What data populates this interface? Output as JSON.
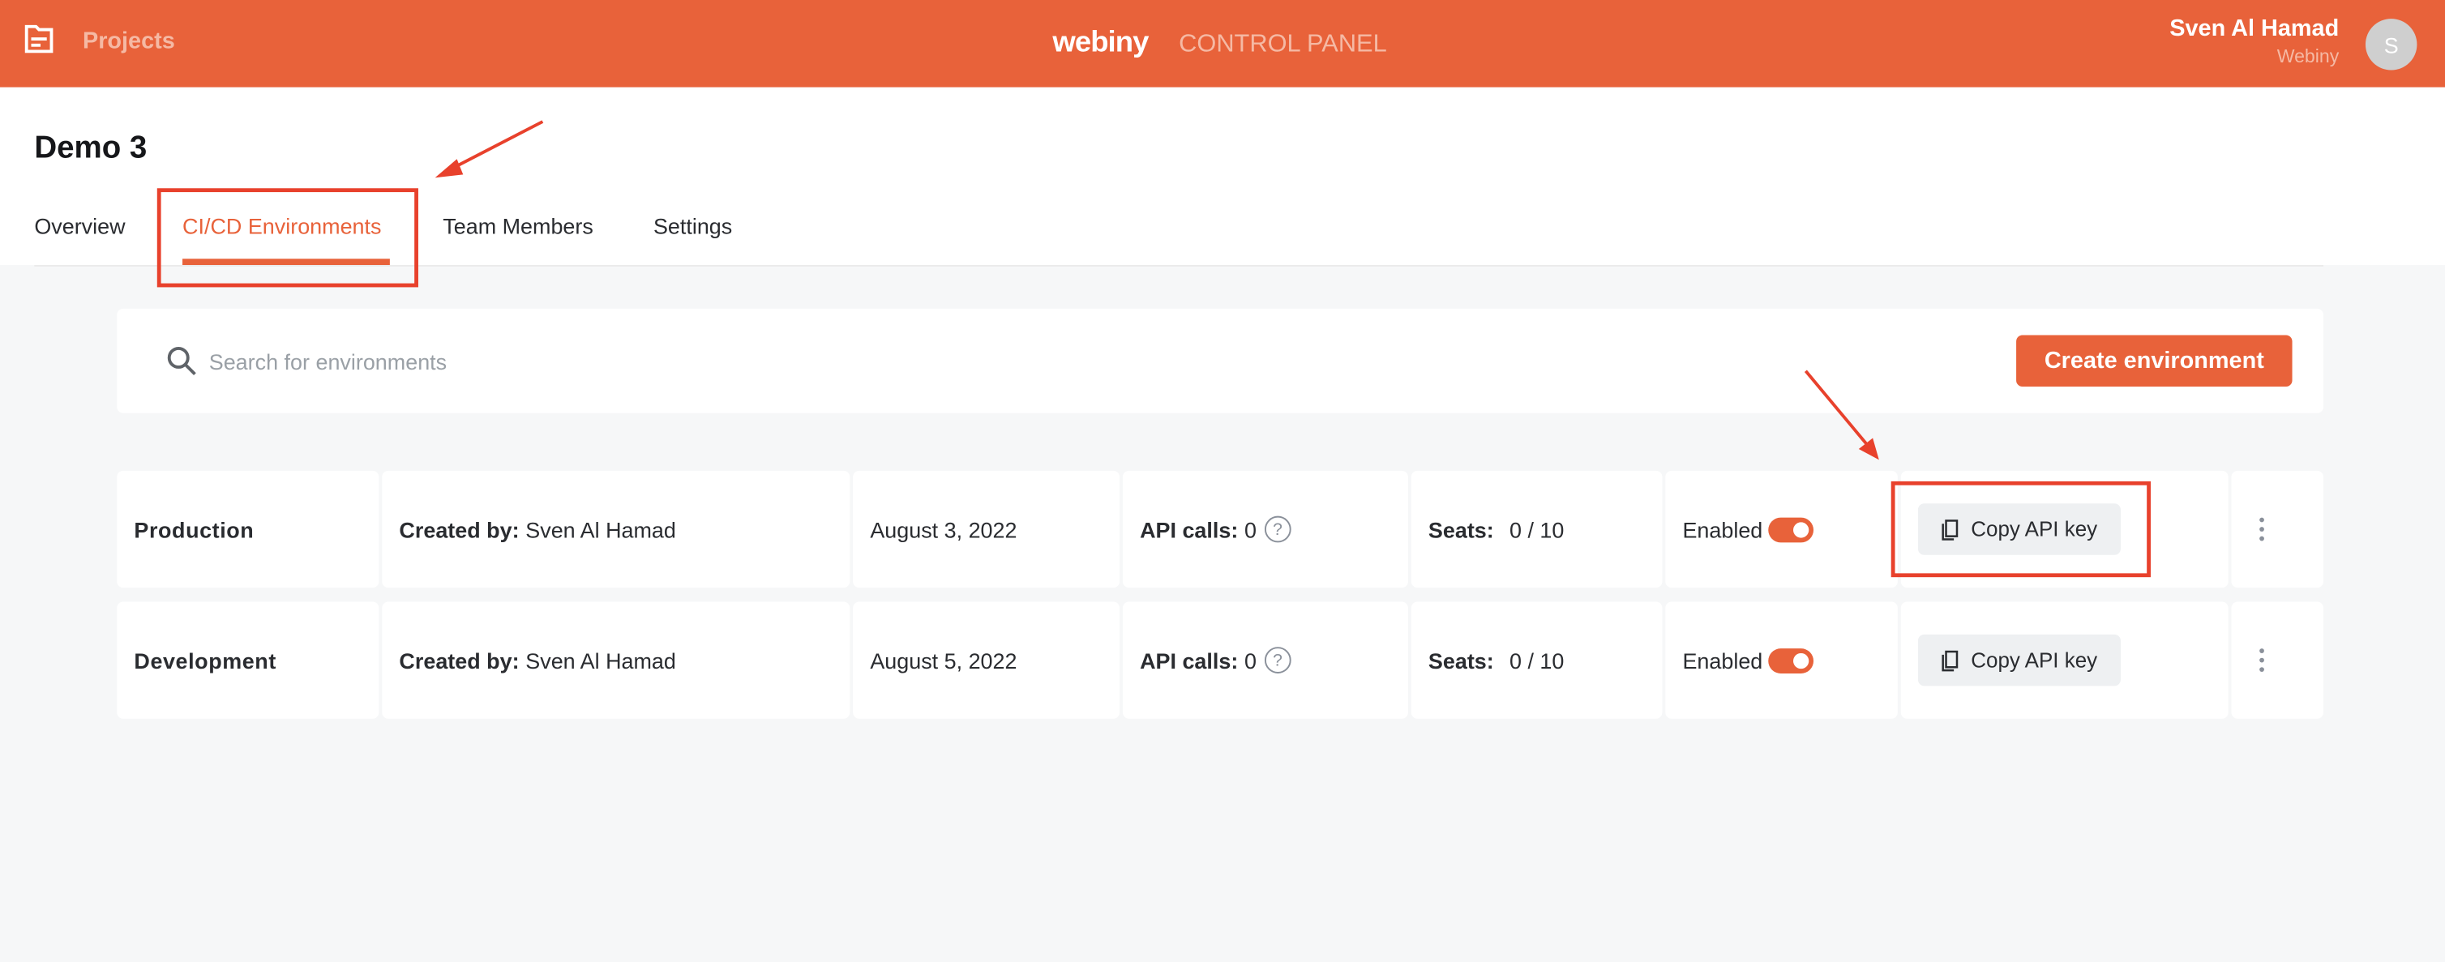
{
  "header": {
    "nav_label": "Projects",
    "logo": "webiny",
    "subtitle": "CONTROL PANEL",
    "user_name": "Sven Al Hamad",
    "user_org": "Webiny",
    "avatar_initial": "S",
    "color": "#E8623A"
  },
  "project": {
    "title": "Demo 3"
  },
  "tabs": [
    {
      "label": "Overview"
    },
    {
      "label": "CI/CD Environments",
      "active": true
    },
    {
      "label": "Team Members"
    },
    {
      "label": "Settings"
    }
  ],
  "search": {
    "placeholder": "Search for environments",
    "value": ""
  },
  "create_label": "Create environment",
  "labels": {
    "created_by": "Created by:",
    "api_calls": "API calls:",
    "seats": "Seats:",
    "enabled": "Enabled",
    "copy": "Copy API key"
  },
  "environments": [
    {
      "name": "Production",
      "created_by": "Sven Al Hamad",
      "date": "August 3, 2022",
      "api_calls": "0",
      "seats": "0 / 10",
      "enabled": true
    },
    {
      "name": "Development",
      "created_by": "Sven Al Hamad",
      "date": "August 5, 2022",
      "api_calls": "0",
      "seats": "0 / 10",
      "enabled": true
    }
  ],
  "annotation_color": "#E8412C"
}
